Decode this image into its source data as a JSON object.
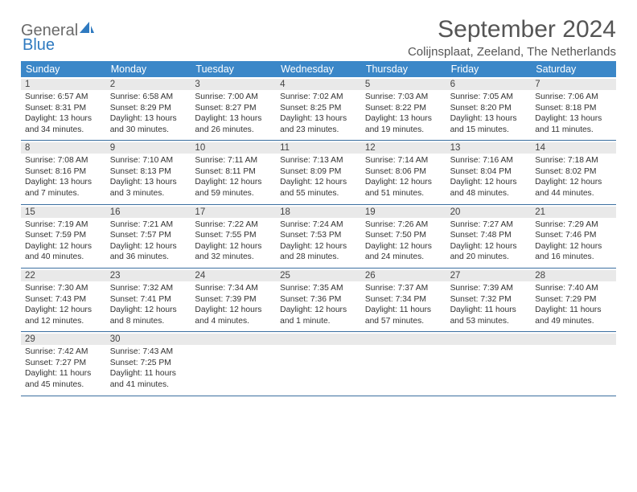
{
  "brand": {
    "part1": "General",
    "part2": "Blue"
  },
  "title": "September 2024",
  "location": "Colijnsplaat, Zeeland, The Netherlands",
  "colors": {
    "header_bg": "#3b87c8",
    "header_text": "#ffffff",
    "daynum_bg": "#e9e9e9",
    "rule": "#3b6fa0",
    "text": "#333333",
    "title": "#555555"
  },
  "weekdays": [
    "Sunday",
    "Monday",
    "Tuesday",
    "Wednesday",
    "Thursday",
    "Friday",
    "Saturday"
  ],
  "weeks": [
    [
      {
        "n": "1",
        "sr": "Sunrise: 6:57 AM",
        "ss": "Sunset: 8:31 PM",
        "d1": "Daylight: 13 hours",
        "d2": "and 34 minutes."
      },
      {
        "n": "2",
        "sr": "Sunrise: 6:58 AM",
        "ss": "Sunset: 8:29 PM",
        "d1": "Daylight: 13 hours",
        "d2": "and 30 minutes."
      },
      {
        "n": "3",
        "sr": "Sunrise: 7:00 AM",
        "ss": "Sunset: 8:27 PM",
        "d1": "Daylight: 13 hours",
        "d2": "and 26 minutes."
      },
      {
        "n": "4",
        "sr": "Sunrise: 7:02 AM",
        "ss": "Sunset: 8:25 PM",
        "d1": "Daylight: 13 hours",
        "d2": "and 23 minutes."
      },
      {
        "n": "5",
        "sr": "Sunrise: 7:03 AM",
        "ss": "Sunset: 8:22 PM",
        "d1": "Daylight: 13 hours",
        "d2": "and 19 minutes."
      },
      {
        "n": "6",
        "sr": "Sunrise: 7:05 AM",
        "ss": "Sunset: 8:20 PM",
        "d1": "Daylight: 13 hours",
        "d2": "and 15 minutes."
      },
      {
        "n": "7",
        "sr": "Sunrise: 7:06 AM",
        "ss": "Sunset: 8:18 PM",
        "d1": "Daylight: 13 hours",
        "d2": "and 11 minutes."
      }
    ],
    [
      {
        "n": "8",
        "sr": "Sunrise: 7:08 AM",
        "ss": "Sunset: 8:16 PM",
        "d1": "Daylight: 13 hours",
        "d2": "and 7 minutes."
      },
      {
        "n": "9",
        "sr": "Sunrise: 7:10 AM",
        "ss": "Sunset: 8:13 PM",
        "d1": "Daylight: 13 hours",
        "d2": "and 3 minutes."
      },
      {
        "n": "10",
        "sr": "Sunrise: 7:11 AM",
        "ss": "Sunset: 8:11 PM",
        "d1": "Daylight: 12 hours",
        "d2": "and 59 minutes."
      },
      {
        "n": "11",
        "sr": "Sunrise: 7:13 AM",
        "ss": "Sunset: 8:09 PM",
        "d1": "Daylight: 12 hours",
        "d2": "and 55 minutes."
      },
      {
        "n": "12",
        "sr": "Sunrise: 7:14 AM",
        "ss": "Sunset: 8:06 PM",
        "d1": "Daylight: 12 hours",
        "d2": "and 51 minutes."
      },
      {
        "n": "13",
        "sr": "Sunrise: 7:16 AM",
        "ss": "Sunset: 8:04 PM",
        "d1": "Daylight: 12 hours",
        "d2": "and 48 minutes."
      },
      {
        "n": "14",
        "sr": "Sunrise: 7:18 AM",
        "ss": "Sunset: 8:02 PM",
        "d1": "Daylight: 12 hours",
        "d2": "and 44 minutes."
      }
    ],
    [
      {
        "n": "15",
        "sr": "Sunrise: 7:19 AM",
        "ss": "Sunset: 7:59 PM",
        "d1": "Daylight: 12 hours",
        "d2": "and 40 minutes."
      },
      {
        "n": "16",
        "sr": "Sunrise: 7:21 AM",
        "ss": "Sunset: 7:57 PM",
        "d1": "Daylight: 12 hours",
        "d2": "and 36 minutes."
      },
      {
        "n": "17",
        "sr": "Sunrise: 7:22 AM",
        "ss": "Sunset: 7:55 PM",
        "d1": "Daylight: 12 hours",
        "d2": "and 32 minutes."
      },
      {
        "n": "18",
        "sr": "Sunrise: 7:24 AM",
        "ss": "Sunset: 7:53 PM",
        "d1": "Daylight: 12 hours",
        "d2": "and 28 minutes."
      },
      {
        "n": "19",
        "sr": "Sunrise: 7:26 AM",
        "ss": "Sunset: 7:50 PM",
        "d1": "Daylight: 12 hours",
        "d2": "and 24 minutes."
      },
      {
        "n": "20",
        "sr": "Sunrise: 7:27 AM",
        "ss": "Sunset: 7:48 PM",
        "d1": "Daylight: 12 hours",
        "d2": "and 20 minutes."
      },
      {
        "n": "21",
        "sr": "Sunrise: 7:29 AM",
        "ss": "Sunset: 7:46 PM",
        "d1": "Daylight: 12 hours",
        "d2": "and 16 minutes."
      }
    ],
    [
      {
        "n": "22",
        "sr": "Sunrise: 7:30 AM",
        "ss": "Sunset: 7:43 PM",
        "d1": "Daylight: 12 hours",
        "d2": "and 12 minutes."
      },
      {
        "n": "23",
        "sr": "Sunrise: 7:32 AM",
        "ss": "Sunset: 7:41 PM",
        "d1": "Daylight: 12 hours",
        "d2": "and 8 minutes."
      },
      {
        "n": "24",
        "sr": "Sunrise: 7:34 AM",
        "ss": "Sunset: 7:39 PM",
        "d1": "Daylight: 12 hours",
        "d2": "and 4 minutes."
      },
      {
        "n": "25",
        "sr": "Sunrise: 7:35 AM",
        "ss": "Sunset: 7:36 PM",
        "d1": "Daylight: 12 hours",
        "d2": "and 1 minute."
      },
      {
        "n": "26",
        "sr": "Sunrise: 7:37 AM",
        "ss": "Sunset: 7:34 PM",
        "d1": "Daylight: 11 hours",
        "d2": "and 57 minutes."
      },
      {
        "n": "27",
        "sr": "Sunrise: 7:39 AM",
        "ss": "Sunset: 7:32 PM",
        "d1": "Daylight: 11 hours",
        "d2": "and 53 minutes."
      },
      {
        "n": "28",
        "sr": "Sunrise: 7:40 AM",
        "ss": "Sunset: 7:29 PM",
        "d1": "Daylight: 11 hours",
        "d2": "and 49 minutes."
      }
    ],
    [
      {
        "n": "29",
        "sr": "Sunrise: 7:42 AM",
        "ss": "Sunset: 7:27 PM",
        "d1": "Daylight: 11 hours",
        "d2": "and 45 minutes."
      },
      {
        "n": "30",
        "sr": "Sunrise: 7:43 AM",
        "ss": "Sunset: 7:25 PM",
        "d1": "Daylight: 11 hours",
        "d2": "and 41 minutes."
      },
      {
        "empty": true
      },
      {
        "empty": true
      },
      {
        "empty": true
      },
      {
        "empty": true
      },
      {
        "empty": true
      }
    ]
  ]
}
